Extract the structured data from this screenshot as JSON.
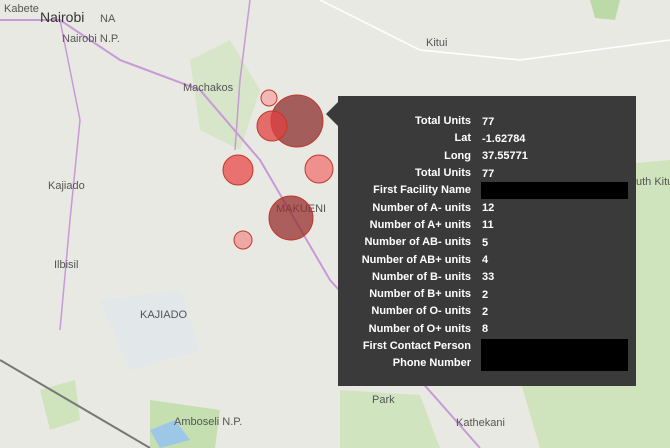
{
  "map_labels": {
    "kabete": "Kabete",
    "nairobi": "Nairobi",
    "na": "NA",
    "nairobi_np": "Nairobi N.P.",
    "kitui": "Kitui",
    "machakos": "Machakos",
    "kajiado": "Kajiado",
    "makueni": "MAKUENI",
    "ilbisil": "Ilbisil",
    "kajiado_county": "KAJIADO",
    "amboseli": "Amboseli N.P.",
    "park": "Park",
    "kathekani": "Kathekani",
    "south_kitui": "uth Kitu Res"
  },
  "tooltip": {
    "rows": [
      {
        "label": "Total Units",
        "value": "77"
      },
      {
        "label": "Lat",
        "value": "-1.62784"
      },
      {
        "label": "Long",
        "value": "37.55771"
      },
      {
        "label": "Total Units",
        "value": "77"
      },
      {
        "label": "First Facility Name"
      },
      {
        "label": "Number of A- units",
        "value": "12"
      },
      {
        "label": "Number of A+ units",
        "value": "11"
      },
      {
        "label": "Number of AB- units",
        "value": "5"
      },
      {
        "label": "Number of AB+ units",
        "value": "4"
      },
      {
        "label": "Number of B- units",
        "value": "33"
      },
      {
        "label": "Number of B+ units",
        "value": "2"
      },
      {
        "label": "Number of O- units",
        "value": "2"
      },
      {
        "label": "Number of O+ units",
        "value": "8"
      },
      {
        "label": "First Contact Person Phone Number"
      }
    ]
  }
}
